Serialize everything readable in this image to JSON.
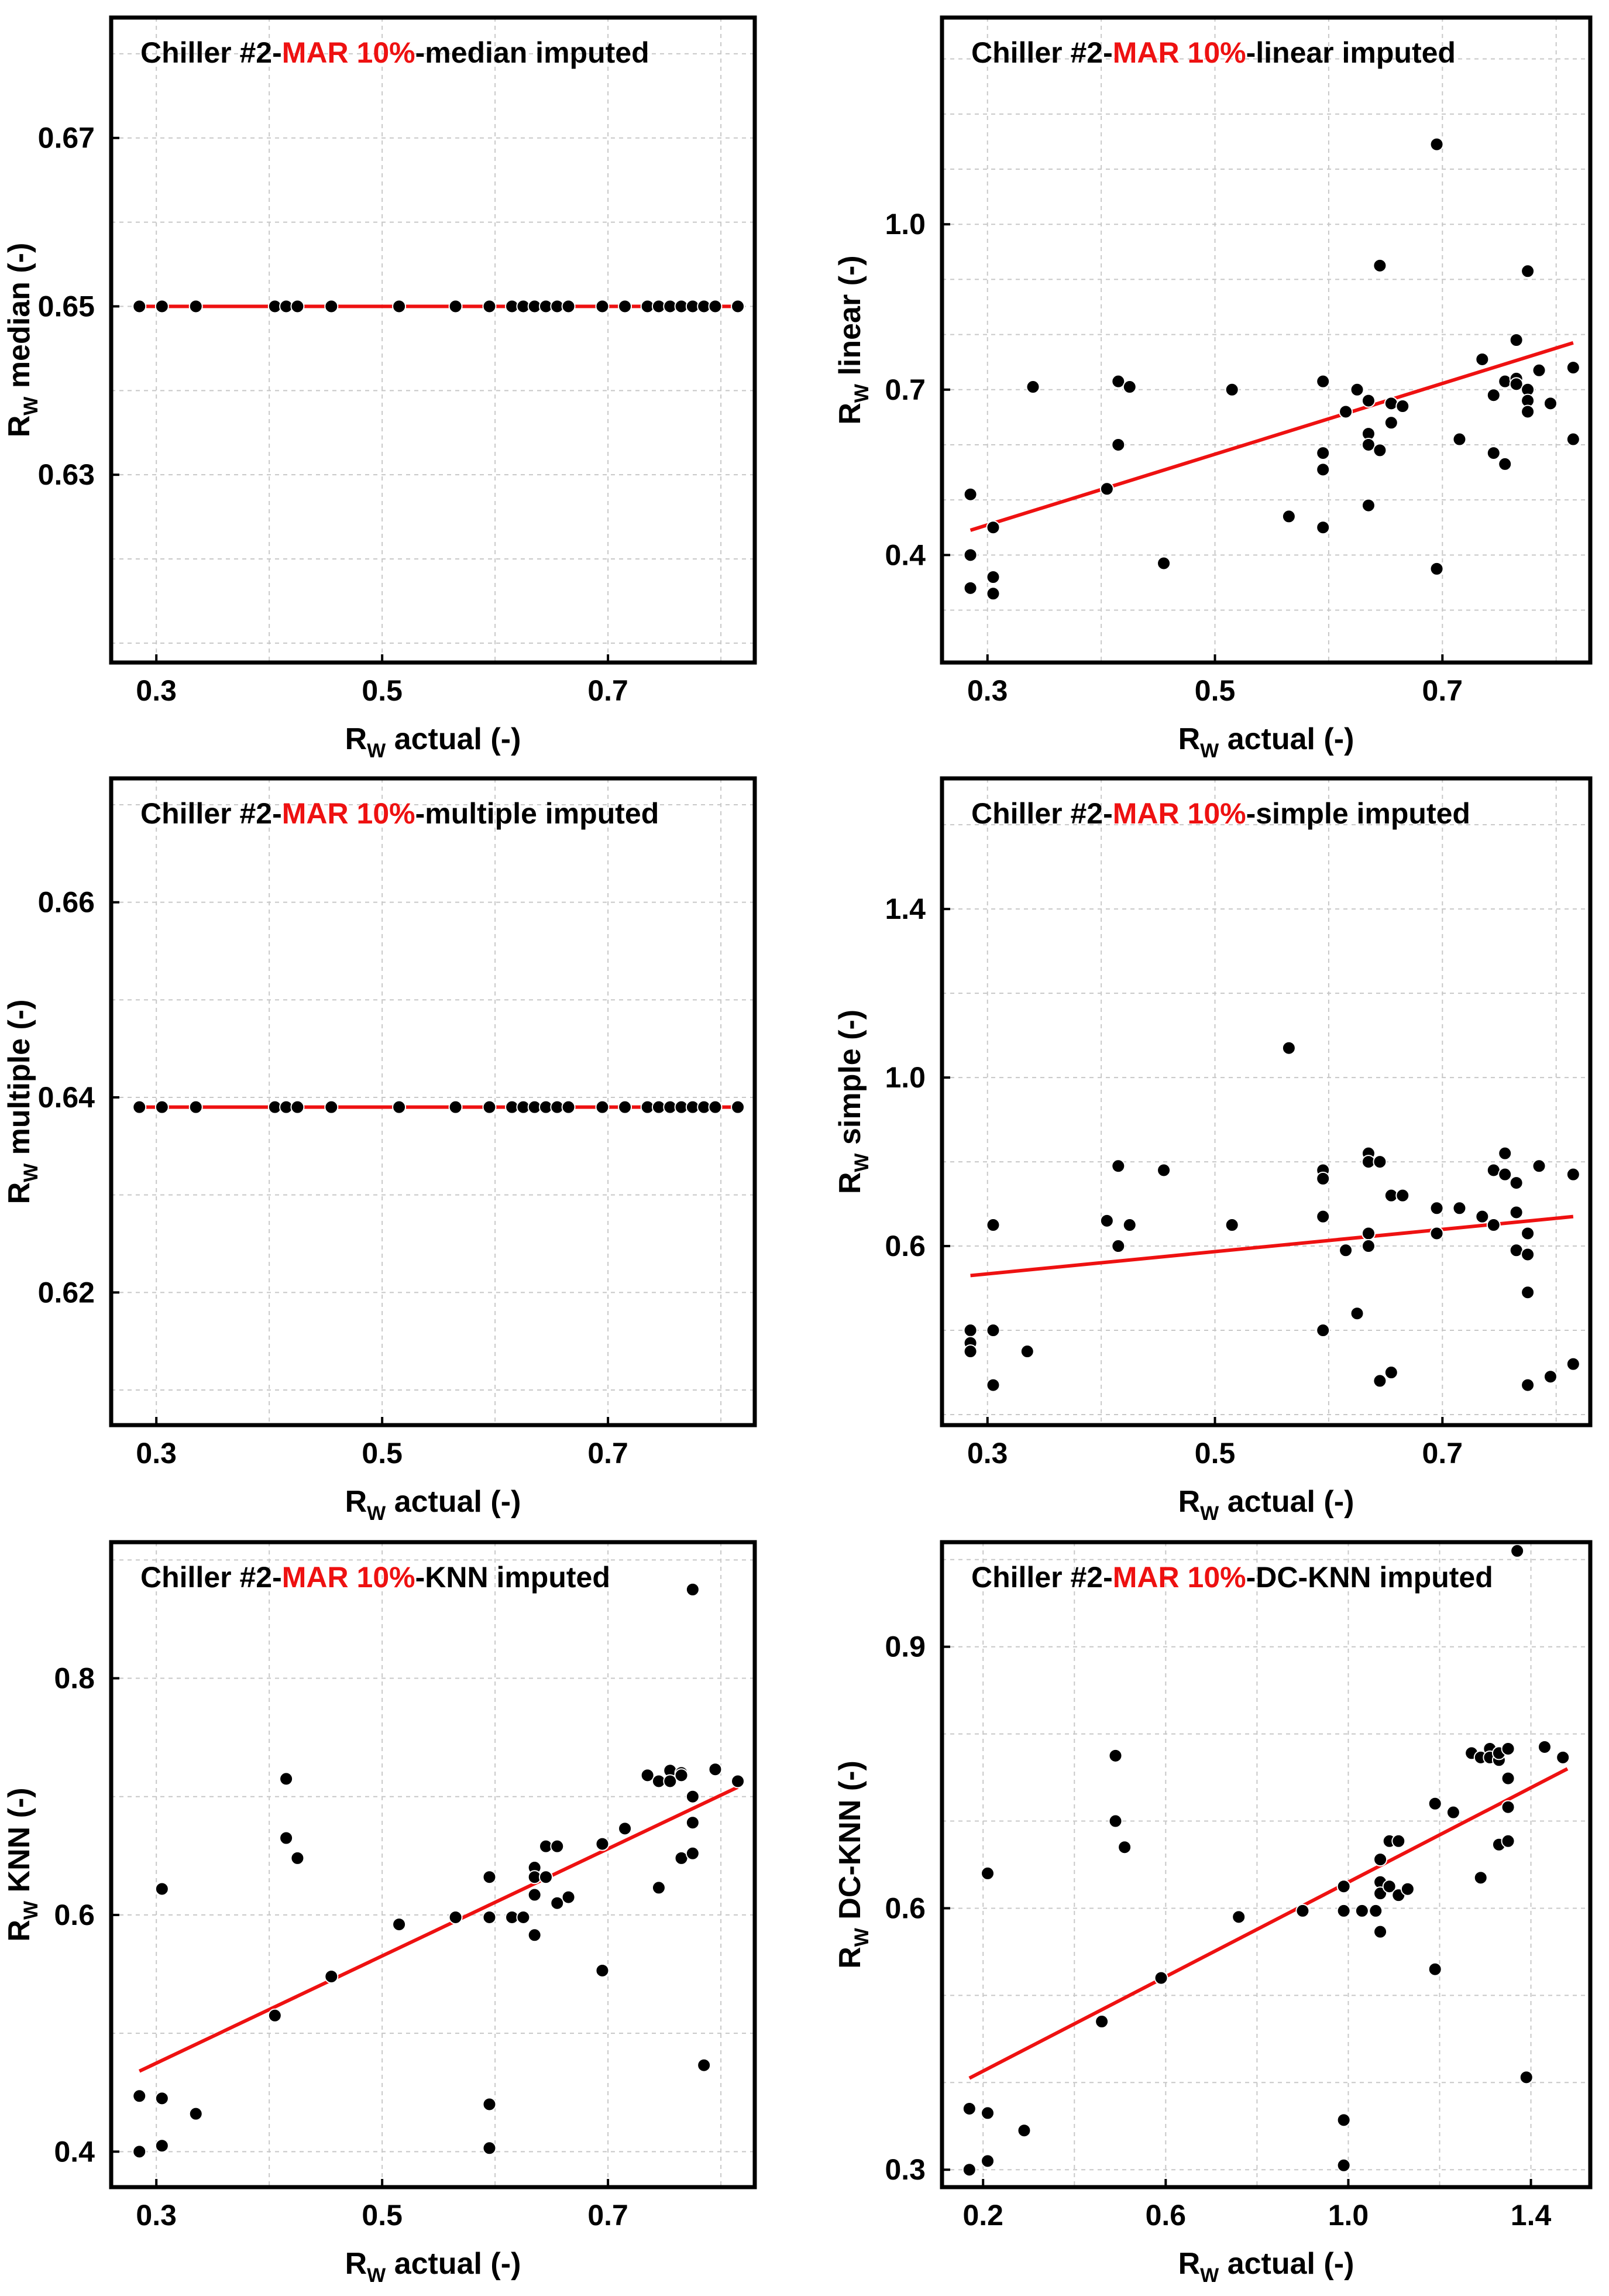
{
  "colors": {
    "points": "#000000",
    "fit_line": "#ee1111",
    "highlight_text": "#ee1111",
    "grid": "#c8c8c8",
    "frame": "#000000"
  },
  "chart_data": [
    {
      "type": "scatter",
      "title_prefix": "Chiller #2-",
      "title_highlight": "MAR 10%",
      "title_suffix": "-median imputed",
      "xlabel": {
        "main": "R",
        "sub": "W",
        "rest": " actual (-)"
      },
      "ylabel": {
        "main": "R",
        "sub": "W",
        "rest": " median (-)"
      },
      "xlim": [
        0.26,
        0.83
      ],
      "ylim": [
        0.6077,
        0.6843
      ],
      "xticks": [
        0.3,
        0.5,
        0.7
      ],
      "xtick_labels": [
        "0.3",
        "0.5",
        "0.7"
      ],
      "yticks": [
        0.63,
        0.65,
        0.67
      ],
      "ytick_labels": [
        "0.63",
        "0.65",
        "0.67"
      ],
      "x_grid_step": 0.1,
      "y_grid_step": 0.01,
      "grid": true,
      "fit_line": {
        "x": [
          0.285,
          0.815
        ],
        "y": [
          0.65,
          0.65
        ]
      },
      "points": {
        "x": [
          0.285,
          0.305,
          0.335,
          0.405,
          0.415,
          0.425,
          0.455,
          0.515,
          0.565,
          0.595,
          0.615,
          0.625,
          0.635,
          0.645,
          0.655,
          0.665,
          0.695,
          0.715,
          0.735,
          0.745,
          0.755,
          0.765,
          0.775,
          0.785,
          0.795,
          0.815
        ],
        "y": [
          0.65,
          0.65,
          0.65,
          0.65,
          0.65,
          0.65,
          0.65,
          0.65,
          0.65,
          0.65,
          0.65,
          0.65,
          0.65,
          0.65,
          0.65,
          0.65,
          0.65,
          0.65,
          0.65,
          0.65,
          0.65,
          0.65,
          0.65,
          0.65,
          0.65,
          0.65
        ]
      }
    },
    {
      "type": "scatter",
      "title_prefix": "Chiller #2-",
      "title_highlight": "MAR 10%",
      "title_suffix": "-linear imputed",
      "xlabel": {
        "main": "R",
        "sub": "W",
        "rest": " actual (-)"
      },
      "ylabel": {
        "main": "R",
        "sub": "W",
        "rest": " linear (-)"
      },
      "xlim": [
        0.26,
        0.83
      ],
      "ylim": [
        0.205,
        1.375
      ],
      "xticks": [
        0.3,
        0.5,
        0.7
      ],
      "xtick_labels": [
        "0.3",
        "0.5",
        "0.7"
      ],
      "yticks": [
        0.4,
        0.7,
        1.0
      ],
      "ytick_labels": [
        "0.4",
        "0.7",
        "1.0"
      ],
      "x_grid_step": 0.1,
      "y_grid_step": 0.1,
      "grid": true,
      "fit_line": {
        "x": [
          0.285,
          0.815
        ],
        "y": [
          0.445,
          0.785
        ]
      },
      "points": {
        "x": [
          0.285,
          0.285,
          0.285,
          0.305,
          0.305,
          0.305,
          0.34,
          0.405,
          0.415,
          0.415,
          0.425,
          0.455,
          0.515,
          0.565,
          0.595,
          0.595,
          0.595,
          0.595,
          0.615,
          0.625,
          0.635,
          0.635,
          0.635,
          0.635,
          0.645,
          0.645,
          0.655,
          0.655,
          0.665,
          0.695,
          0.695,
          0.715,
          0.735,
          0.745,
          0.745,
          0.755,
          0.755,
          0.765,
          0.765,
          0.765,
          0.775,
          0.775,
          0.775,
          0.775,
          0.785,
          0.795,
          0.815,
          0.815
        ],
        "y": [
          0.51,
          0.4,
          0.34,
          0.45,
          0.36,
          0.33,
          0.705,
          0.52,
          0.715,
          0.6,
          0.705,
          0.385,
          0.7,
          0.47,
          0.715,
          0.585,
          0.555,
          0.45,
          0.66,
          0.7,
          0.68,
          0.62,
          0.6,
          0.49,
          0.925,
          0.59,
          0.675,
          0.64,
          0.67,
          1.145,
          0.375,
          0.61,
          0.755,
          0.69,
          0.585,
          0.715,
          0.565,
          0.79,
          0.72,
          0.71,
          0.915,
          0.7,
          0.68,
          0.66,
          0.735,
          0.675,
          0.74,
          0.61
        ]
      }
    },
    {
      "type": "scatter",
      "title_prefix": "Chiller #2-",
      "title_highlight": "MAR 10%",
      "title_suffix": "-multiple imputed",
      "xlabel": {
        "main": "R",
        "sub": "W",
        "rest": " actual (-)"
      },
      "ylabel": {
        "main": "R",
        "sub": "W",
        "rest": " multiple (-)"
      },
      "xlim": [
        0.26,
        0.83
      ],
      "ylim": [
        0.6064,
        0.6727
      ],
      "xticks": [
        0.3,
        0.5,
        0.7
      ],
      "xtick_labels": [
        "0.3",
        "0.5",
        "0.7"
      ],
      "yticks": [
        0.62,
        0.64,
        0.66
      ],
      "ytick_labels": [
        "0.62",
        "0.64",
        "0.66"
      ],
      "x_grid_step": 0.1,
      "y_grid_step": 0.01,
      "grid": true,
      "fit_line": {
        "x": [
          0.285,
          0.815
        ],
        "y": [
          0.639,
          0.639
        ]
      },
      "points": {
        "x": [
          0.285,
          0.305,
          0.335,
          0.405,
          0.415,
          0.425,
          0.455,
          0.515,
          0.565,
          0.595,
          0.615,
          0.625,
          0.635,
          0.645,
          0.655,
          0.665,
          0.695,
          0.715,
          0.735,
          0.745,
          0.755,
          0.765,
          0.775,
          0.785,
          0.795,
          0.815
        ],
        "y": [
          0.639,
          0.639,
          0.639,
          0.639,
          0.639,
          0.639,
          0.639,
          0.639,
          0.639,
          0.639,
          0.639,
          0.639,
          0.639,
          0.639,
          0.639,
          0.639,
          0.639,
          0.639,
          0.639,
          0.639,
          0.639,
          0.639,
          0.639,
          0.639,
          0.639,
          0.639
        ]
      }
    },
    {
      "type": "scatter",
      "title_prefix": "Chiller #2-",
      "title_highlight": "MAR 10%",
      "title_suffix": "-simple imputed",
      "xlabel": {
        "main": "R",
        "sub": "W",
        "rest": " actual (-)"
      },
      "ylabel": {
        "main": "R",
        "sub": "W",
        "rest": " simple (-)"
      },
      "xlim": [
        0.26,
        0.83
      ],
      "ylim": [
        0.175,
        1.71
      ],
      "xticks": [
        0.3,
        0.5,
        0.7
      ],
      "xtick_labels": [
        "0.3",
        "0.5",
        "0.7"
      ],
      "yticks": [
        0.6,
        1.0,
        1.4
      ],
      "ytick_labels": [
        "0.6",
        "1.0",
        "1.4"
      ],
      "x_grid_step": 0.1,
      "y_grid_step": 0.2,
      "grid": true,
      "fit_line": {
        "x": [
          0.285,
          0.815
        ],
        "y": [
          0.53,
          0.67
        ]
      },
      "points": {
        "x": [
          0.285,
          0.285,
          0.285,
          0.305,
          0.305,
          0.305,
          0.335,
          0.405,
          0.415,
          0.415,
          0.425,
          0.455,
          0.515,
          0.565,
          0.595,
          0.595,
          0.595,
          0.595,
          0.615,
          0.625,
          0.635,
          0.635,
          0.635,
          0.635,
          0.645,
          0.645,
          0.655,
          0.655,
          0.665,
          0.695,
          0.695,
          0.715,
          0.735,
          0.745,
          0.745,
          0.755,
          0.755,
          0.765,
          0.765,
          0.765,
          0.775,
          0.775,
          0.775,
          0.775,
          0.785,
          0.795,
          0.815,
          0.815
        ],
        "y": [
          0.4,
          0.37,
          0.35,
          0.65,
          0.4,
          0.27,
          0.35,
          0.66,
          0.79,
          0.6,
          0.65,
          0.78,
          0.65,
          1.07,
          0.78,
          0.76,
          0.67,
          0.4,
          0.59,
          0.44,
          0.82,
          0.8,
          0.63,
          0.6,
          0.8,
          0.28,
          0.72,
          0.3,
          0.72,
          0.69,
          0.63,
          0.69,
          0.67,
          0.78,
          0.65,
          0.82,
          0.77,
          0.75,
          0.68,
          0.59,
          0.63,
          0.58,
          0.49,
          0.27,
          0.79,
          0.29,
          0.77,
          0.32
        ]
      }
    },
    {
      "type": "scatter",
      "title_prefix": "Chiller #2-",
      "title_highlight": "MAR 10%",
      "title_suffix": "-KNN imputed",
      "xlabel": {
        "main": "R",
        "sub": "W",
        "rest": " actual (-)"
      },
      "ylabel": {
        "main": "R",
        "sub": "W",
        "rest": " KNN (-)"
      },
      "xlim": [
        0.26,
        0.83
      ],
      "ylim": [
        0.37,
        0.915
      ],
      "xticks": [
        0.3,
        0.5,
        0.7
      ],
      "xtick_labels": [
        "0.3",
        "0.5",
        "0.7"
      ],
      "yticks": [
        0.4,
        0.6,
        0.8
      ],
      "ytick_labels": [
        "0.4",
        "0.6",
        "0.8"
      ],
      "x_grid_step": 0.1,
      "y_grid_step": 0.1,
      "grid": true,
      "fit_line": {
        "x": [
          0.285,
          0.815
        ],
        "y": [
          0.468,
          0.708
        ]
      },
      "points": {
        "x": [
          0.285,
          0.285,
          0.305,
          0.305,
          0.305,
          0.335,
          0.405,
          0.415,
          0.415,
          0.425,
          0.455,
          0.515,
          0.565,
          0.595,
          0.595,
          0.595,
          0.595,
          0.615,
          0.625,
          0.635,
          0.635,
          0.635,
          0.635,
          0.645,
          0.645,
          0.655,
          0.655,
          0.665,
          0.695,
          0.695,
          0.715,
          0.735,
          0.745,
          0.745,
          0.755,
          0.755,
          0.765,
          0.765,
          0.765,
          0.775,
          0.775,
          0.775,
          0.775,
          0.785,
          0.795,
          0.815
        ],
        "y": [
          0.447,
          0.4,
          0.622,
          0.445,
          0.405,
          0.432,
          0.515,
          0.715,
          0.665,
          0.648,
          0.548,
          0.592,
          0.598,
          0.632,
          0.598,
          0.44,
          0.403,
          0.598,
          0.598,
          0.64,
          0.632,
          0.617,
          0.583,
          0.658,
          0.632,
          0.658,
          0.61,
          0.615,
          0.66,
          0.553,
          0.673,
          0.718,
          0.713,
          0.623,
          0.722,
          0.713,
          0.72,
          0.718,
          0.648,
          0.875,
          0.7,
          0.652,
          0.678,
          0.473,
          0.723,
          0.713
        ]
      }
    },
    {
      "type": "scatter",
      "title_prefix": "Chiller #2-",
      "title_highlight": "MAR 10%",
      "title_suffix": "-DC-KNN imputed",
      "xlabel": {
        "main": "R",
        "sub": "W",
        "rest": " actual (-)"
      },
      "ylabel": {
        "main": "R",
        "sub": "W",
        "rest": " DC-KNN (-)"
      },
      "xlim": [
        0.11,
        1.53
      ],
      "ylim": [
        0.28,
        1.02
      ],
      "xticks": [
        0.2,
        0.6,
        1.0,
        1.4
      ],
      "xtick_labels": [
        "0.2",
        "0.6",
        "1.0",
        "1.4"
      ],
      "yticks": [
        0.3,
        0.6,
        0.9
      ],
      "ytick_labels": [
        "0.3",
        "0.6",
        "0.9"
      ],
      "x_grid_step": 0.2,
      "y_grid_step": 0.1,
      "grid": true,
      "fit_line": {
        "x": [
          0.17,
          1.48
        ],
        "y": [
          0.405,
          0.76
        ]
      },
      "points": {
        "x": [
          0.17,
          0.17,
          0.21,
          0.21,
          0.21,
          0.29,
          0.46,
          0.49,
          0.49,
          0.51,
          0.59,
          0.76,
          0.9,
          0.99,
          0.99,
          0.99,
          0.99,
          1.03,
          1.06,
          1.07,
          1.07,
          1.07,
          1.07,
          1.09,
          1.09,
          1.11,
          1.11,
          1.13,
          1.19,
          1.19,
          1.23,
          1.27,
          1.29,
          1.29,
          1.31,
          1.31,
          1.33,
          1.33,
          1.33,
          1.35,
          1.35,
          1.35,
          1.35,
          1.37,
          1.39,
          1.43,
          1.47
        ],
        "y": [
          0.37,
          0.3,
          0.64,
          0.365,
          0.31,
          0.345,
          0.47,
          0.775,
          0.7,
          0.67,
          0.52,
          0.59,
          0.597,
          0.625,
          0.597,
          0.357,
          0.305,
          0.597,
          0.597,
          0.656,
          0.63,
          0.617,
          0.573,
          0.677,
          0.625,
          0.677,
          0.615,
          0.622,
          0.72,
          0.53,
          0.71,
          0.778,
          0.773,
          0.635,
          0.783,
          0.773,
          0.77,
          0.778,
          0.673,
          0.783,
          0.716,
          0.677,
          0.749,
          1.01,
          0.406,
          0.785,
          0.773
        ]
      }
    }
  ]
}
